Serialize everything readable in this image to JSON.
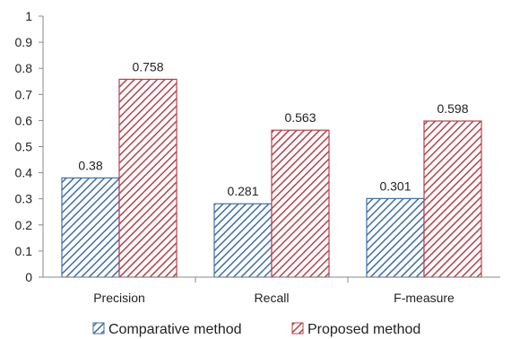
{
  "chart_data": {
    "type": "bar",
    "categories": [
      "Precision",
      "Recall",
      "F-measure"
    ],
    "series": [
      {
        "name": "Comparative method",
        "values": [
          0.38,
          0.281,
          0.301
        ],
        "labels": [
          "0.38",
          "0.281",
          "0.301"
        ],
        "color": "#3d6ea8"
      },
      {
        "name": "Proposed method",
        "values": [
          0.758,
          0.563,
          0.598
        ],
        "labels": [
          "0.758",
          "0.563",
          "0.598"
        ],
        "color": "#b8404a"
      }
    ],
    "ylim": [
      0,
      1
    ],
    "yticks": [
      "0",
      "0.1",
      "0.2",
      "0.3",
      "0.4",
      "0.5",
      "0.6",
      "0.7",
      "0.8",
      "0.9",
      "1"
    ],
    "grid": false,
    "legend": "bottom"
  }
}
